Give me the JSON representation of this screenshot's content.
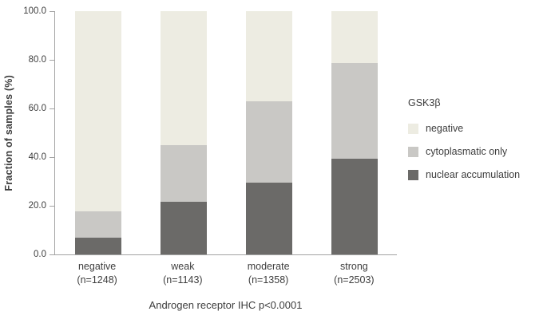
{
  "chart_data": {
    "type": "bar",
    "stacked": true,
    "title": "",
    "ylabel": "Fraction of samples (%)",
    "xlabel": "Androgen receptor IHC p<0.0001",
    "legend_title": "GSK3β",
    "ylim": [
      0,
      100
    ],
    "yticks": [
      "0.0",
      "20.0",
      "40.0",
      "60.0",
      "80.0",
      "100.0"
    ],
    "ytick_values": [
      0,
      20,
      40,
      60,
      80,
      100
    ],
    "categories": [
      "negative",
      "weak",
      "moderate",
      "strong"
    ],
    "category_counts": [
      "(n=1248)",
      "(n=1143)",
      "(n=1358)",
      "(n=2503)"
    ],
    "series": [
      {
        "name": "nuclear accumulation",
        "color": "#6b6a68",
        "values": [
          7.0,
          21.6,
          29.5,
          39.4
        ]
      },
      {
        "name": "cytoplasmatic only",
        "color": "#c9c8c5",
        "values": [
          10.6,
          23.3,
          33.5,
          39.2
        ]
      },
      {
        "name": "negative",
        "color": "#edece2",
        "values": [
          82.4,
          55.1,
          37.0,
          21.4
        ]
      }
    ],
    "legend_order": [
      "negative",
      "cytoplasmatic only",
      "nuclear accumulation"
    ],
    "axis_color": "#a3a3a3",
    "text_color": "#3d3d3d",
    "grid": false,
    "legend_position": "right"
  }
}
